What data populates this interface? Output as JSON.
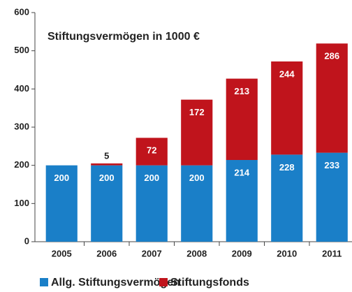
{
  "chart_data": {
    "type": "stacked_bar",
    "title": "Stiftungsvermögen in 1000 €",
    "categories": [
      "2005",
      "2006",
      "2007",
      "2008",
      "2009",
      "2010",
      "2011"
    ],
    "series": [
      {
        "name": "Allg. Stiftungsvermögen",
        "color": "#1a7fc8",
        "values": [
          200,
          200,
          200,
          200,
          214,
          228,
          233
        ]
      },
      {
        "name": "Stiftungsfonds",
        "color": "#c0141c",
        "values": [
          0,
          5,
          72,
          172,
          213,
          244,
          286
        ]
      }
    ],
    "ylim": [
      0,
      600
    ],
    "yticks": [
      0,
      100,
      200,
      300,
      400,
      500,
      600
    ],
    "grid": false,
    "legend": "bottom"
  }
}
